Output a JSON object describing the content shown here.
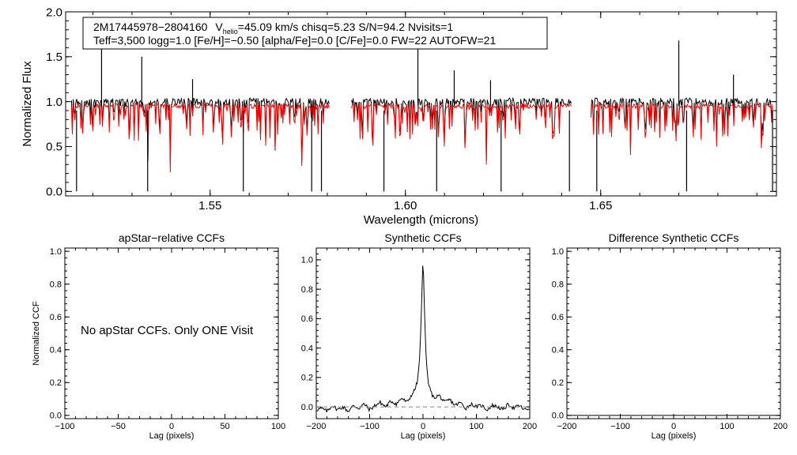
{
  "colors": {
    "observed": "#000000",
    "model": "#ff0000",
    "zero_line": "#888888",
    "axis": "#000000"
  },
  "spectrum": {
    "legend": {
      "line1_id": "2M17445978−2804160",
      "line1_vhelio_symbol": "V",
      "line1_vhelio_sub": "helio",
      "line1_rest": "=45.09 km/s  chisq=5.23  S/N=94.2  Nvisits=1",
      "line2": "Teff=3,500 logg=1.0 [Fe/H]=−0.50 [alpha/Fe]=0.0 [C/Fe]=0.0 FW=22 AUTOFW=21"
    }
  },
  "ccf_panels": {
    "empty_message": "No apStar CCFs.  Only ONE Visit"
  },
  "chart_data": [
    {
      "type": "line",
      "id": "spectrum",
      "title": "",
      "xlabel": "Wavelength (microns)",
      "ylabel": "Normalized Flux",
      "xlim": [
        1.513,
        1.695
      ],
      "ylim": [
        -0.05,
        2.0
      ],
      "xticks": [
        1.55,
        1.6,
        1.65
      ],
      "xtick_labels": [
        "1.55",
        "1.60",
        "1.65"
      ],
      "yticks": [
        0.0,
        0.5,
        1.0,
        1.5,
        2.0
      ],
      "ytick_labels": [
        "0.0",
        "0.5",
        "1.0",
        "1.5",
        "2.0"
      ],
      "chip_ranges": [
        [
          1.5145,
          1.5805
        ],
        [
          1.5862,
          1.6425
        ],
        [
          1.6475,
          1.694
        ]
      ],
      "gaps": [
        [
          1.5805,
          1.5862
        ],
        [
          1.6425,
          1.6475
        ]
      ],
      "series": [
        {
          "name": "Observed spectrum",
          "color": "black",
          "baseline": 1.0
        },
        {
          "name": "Synthetic model",
          "color": "red",
          "baseline": 0.95
        }
      ],
      "emission_spikes": [
        {
          "x": 1.5222,
          "y": 1.6
        },
        {
          "x": 1.5325,
          "y": 1.5
        },
        {
          "x": 1.5455,
          "y": 1.25
        },
        {
          "x": 1.6032,
          "y": 1.62
        },
        {
          "x": 1.6125,
          "y": 1.35
        },
        {
          "x": 1.6218,
          "y": 1.24
        },
        {
          "x": 1.67,
          "y": 1.68
        },
        {
          "x": 1.684,
          "y": 1.3
        }
      ],
      "deep_absorptions": [
        {
          "x": 1.5158,
          "y": 0.0
        },
        {
          "x": 1.534,
          "y": 0.0
        },
        {
          "x": 1.5585,
          "y": 0.0
        },
        {
          "x": 1.576,
          "y": 0.0
        },
        {
          "x": 1.5785,
          "y": 0.0
        },
        {
          "x": 1.5945,
          "y": 0.0
        },
        {
          "x": 1.608,
          "y": 0.0
        },
        {
          "x": 1.6245,
          "y": 0.0
        },
        {
          "x": 1.642,
          "y": 0.0
        },
        {
          "x": 1.649,
          "y": 0.0
        },
        {
          "x": 1.672,
          "y": 0.0
        },
        {
          "x": 1.694,
          "y": 0.0
        }
      ]
    },
    {
      "type": "line",
      "id": "apstar_ccf",
      "title": "apStar−relative CCFs",
      "xlabel": "Lag (pixels)",
      "ylabel": "Normalized CCF",
      "xlim": [
        -100,
        100
      ],
      "ylim": [
        -0.02,
        1.02
      ],
      "xticks": [
        -100,
        -50,
        0,
        50,
        100
      ],
      "xtick_labels": [
        "−100",
        "−50",
        "0",
        "50",
        "100"
      ],
      "yticks": [
        0.0,
        0.2,
        0.4,
        0.6,
        0.8,
        1.0
      ],
      "ytick_labels": [
        "0.0",
        "0.2",
        "0.4",
        "0.6",
        "0.8",
        "1.0"
      ],
      "series": []
    },
    {
      "type": "line",
      "id": "synthetic_ccf",
      "title": "Synthetic CCFs",
      "xlabel": "Lag (pixels)",
      "ylabel": "",
      "xlim": [
        -200,
        200
      ],
      "ylim": [
        -0.08,
        1.08
      ],
      "xticks": [
        -200,
        -100,
        0,
        100,
        200
      ],
      "xtick_labels": [
        "−200",
        "−100",
        "0",
        "100",
        "200"
      ],
      "yticks": [
        0.0,
        0.2,
        0.4,
        0.6,
        0.8,
        1.0
      ],
      "ytick_labels": [
        "0.0",
        "0.2",
        "0.4",
        "0.6",
        "0.8",
        "1.0"
      ],
      "series": [
        {
          "name": "Synthetic CCF",
          "color": "black",
          "x": [
            -200,
            -190,
            -180,
            -170,
            -160,
            -150,
            -140,
            -130,
            -120,
            -110,
            -100,
            -90,
            -80,
            -70,
            -60,
            -50,
            -40,
            -30,
            -20,
            -15,
            -10,
            -6,
            -3,
            -1,
            0,
            1,
            3,
            6,
            10,
            15,
            20,
            30,
            40,
            50,
            60,
            70,
            80,
            90,
            100,
            110,
            120,
            130,
            140,
            150,
            160,
            170,
            180,
            190,
            200
          ],
          "y": [
            -0.02,
            -0.01,
            -0.03,
            0.01,
            -0.02,
            0.0,
            -0.03,
            0.01,
            -0.01,
            0.02,
            -0.02,
            0.01,
            0.03,
            0.0,
            0.04,
            0.02,
            0.06,
            0.03,
            0.09,
            0.12,
            0.18,
            0.35,
            0.65,
            0.92,
            1.0,
            0.9,
            0.62,
            0.32,
            0.16,
            0.1,
            0.06,
            0.08,
            0.03,
            0.05,
            0.01,
            0.03,
            -0.01,
            0.02,
            0.0,
            0.01,
            -0.02,
            0.01,
            0.0,
            -0.02,
            0.02,
            -0.01,
            0.01,
            -0.02,
            -0.01
          ]
        },
        {
          "name": "Zero level",
          "color": "gray",
          "style": "dashed",
          "x": [
            -200,
            200
          ],
          "y": [
            0.0,
            0.0
          ]
        }
      ]
    },
    {
      "type": "line",
      "id": "difference_ccf",
      "title": "Difference Synthetic CCFs",
      "xlabel": "Lag (pixels)",
      "ylabel": "",
      "xlim": [
        -200,
        200
      ],
      "ylim": [
        -0.02,
        1.02
      ],
      "xticks": [
        -200,
        -100,
        0,
        100,
        200
      ],
      "xtick_labels": [
        "−200",
        "−100",
        "0",
        "100",
        "200"
      ],
      "yticks": [
        0.0,
        0.2,
        0.4,
        0.6,
        0.8,
        1.0
      ],
      "ytick_labels": [
        "0.0",
        "0.2",
        "0.4",
        "0.6",
        "0.8",
        "1.0"
      ],
      "series": [
        {
          "name": "Difference CCF",
          "color": "black",
          "x": [
            -200,
            200
          ],
          "y": [
            0.0,
            0.0
          ]
        }
      ]
    }
  ]
}
